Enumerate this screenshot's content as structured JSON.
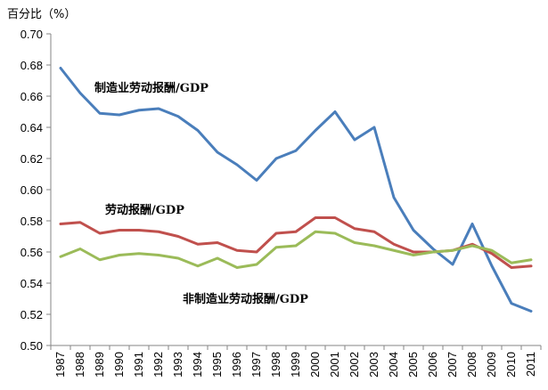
{
  "chart_data": {
    "type": "line",
    "unit_label": "百分比（%）",
    "x": [
      "1987",
      "1988",
      "1989",
      "1990",
      "1991",
      "1992",
      "1993",
      "1994",
      "1995",
      "1996",
      "1997",
      "1998",
      "1999",
      "2000",
      "2001",
      "2002",
      "2003",
      "2004",
      "2005",
      "2006",
      "2007",
      "2008",
      "2009",
      "2010",
      "2011"
    ],
    "ylim": [
      0.5,
      0.7
    ],
    "yticks": [
      "0.50",
      "0.52",
      "0.54",
      "0.56",
      "0.58",
      "0.60",
      "0.62",
      "0.64",
      "0.66",
      "0.68",
      "0.70"
    ],
    "grid": false,
    "legend": "none",
    "series": [
      {
        "name": "制造业劳动报酬/GDP",
        "color": "#4a7ebb",
        "values": [
          0.678,
          0.662,
          0.649,
          0.648,
          0.651,
          0.652,
          0.647,
          0.638,
          0.624,
          0.616,
          0.606,
          0.62,
          0.625,
          0.638,
          0.65,
          0.632,
          0.64,
          0.595,
          0.574,
          0.562,
          0.552,
          0.578,
          0.551,
          0.527,
          0.522
        ]
      },
      {
        "name": "劳动报酬/GDP",
        "color": "#c0504d",
        "values": [
          0.578,
          0.579,
          0.572,
          0.574,
          0.574,
          0.573,
          0.57,
          0.565,
          0.566,
          0.561,
          0.56,
          0.572,
          0.573,
          0.582,
          0.582,
          0.575,
          0.573,
          0.565,
          0.56,
          0.56,
          0.561,
          0.565,
          0.559,
          0.55,
          0.551
        ]
      },
      {
        "name": "非制造业劳动报酬/GDP",
        "color": "#9bbb59",
        "values": [
          0.557,
          0.562,
          0.555,
          0.558,
          0.559,
          0.558,
          0.556,
          0.551,
          0.556,
          0.55,
          0.552,
          0.563,
          0.564,
          0.573,
          0.572,
          0.566,
          0.564,
          0.561,
          0.558,
          0.56,
          0.561,
          0.564,
          0.561,
          0.553,
          0.555
        ]
      }
    ],
    "annotations": [
      {
        "text": "制造业劳动报酬/GDP",
        "series": 0
      },
      {
        "text": "劳动报酬/GDP",
        "series": 1
      },
      {
        "text": "非制造业劳动报酬/GDP",
        "series": 2
      }
    ]
  }
}
